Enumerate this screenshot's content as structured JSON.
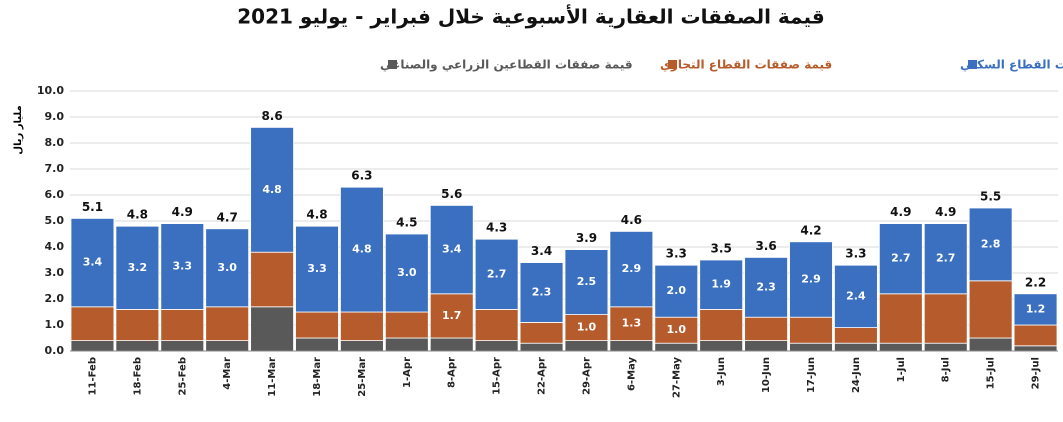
{
  "chart_data": {
    "type": "stacked_bar",
    "title": "قيمة الصفقات العقارية الأسبوعية خلال فبراير - يوليو 2021",
    "y_label": "مليار ريال",
    "categories": [
      "11-Feb",
      "18-Feb",
      "25-Feb",
      "4-Mar",
      "11-Mar",
      "18-Mar",
      "25-Mar",
      "1-Apr",
      "8-Apr",
      "15-Apr",
      "22-Apr",
      "29-Apr",
      "6-May",
      "27-May",
      "3-Jun",
      "10-Jun",
      "17-Jun",
      "24-Jun",
      "1-Jul",
      "8-Jul",
      "15-Jul",
      "29-Jul"
    ],
    "series": [
      {
        "name": "قيمة صفقات القطاعين الزراعي والصناعي",
        "color": "#595959",
        "values": [
          0.4,
          0.4,
          0.4,
          0.4,
          1.7,
          0.5,
          0.4,
          0.5,
          0.5,
          0.4,
          0.3,
          0.4,
          0.4,
          0.3,
          0.4,
          0.4,
          0.3,
          0.3,
          0.3,
          0.3,
          0.5,
          0.2
        ]
      },
      {
        "name": "قيمة صفقات القطاع التجاري",
        "color": "#b65c2c",
        "values": [
          1.3,
          1.2,
          1.2,
          1.3,
          2.1,
          1.0,
          1.1,
          1.0,
          1.7,
          1.2,
          0.8,
          1.0,
          1.3,
          1.0,
          1.2,
          0.9,
          1.0,
          0.6,
          1.9,
          1.9,
          2.2,
          0.8
        ],
        "value_labels": [
          null,
          null,
          null,
          null,
          null,
          null,
          null,
          null,
          "1.7",
          null,
          null,
          "1.0",
          "1.3",
          "1.0",
          null,
          null,
          null,
          null,
          null,
          null,
          null,
          null
        ]
      },
      {
        "name": "قيمة صفقات القطاع السكني",
        "color": "#3a70bf",
        "values": [
          3.4,
          3.2,
          3.3,
          3.0,
          4.8,
          3.3,
          4.8,
          3.0,
          3.4,
          2.7,
          2.3,
          2.5,
          2.9,
          2.0,
          1.9,
          2.3,
          2.9,
          2.4,
          2.7,
          2.7,
          2.8,
          1.2
        ],
        "value_labels": [
          "3.4",
          "3.2",
          "3.3",
          "3.0",
          "4.8",
          "3.3",
          "4.8",
          "3.0",
          "3.4",
          "2.7",
          "2.3",
          "2.5",
          "2.9",
          "2.0",
          "1.9",
          "2.3",
          "2.9",
          "2.4",
          "2.7",
          "2.7",
          "2.8",
          "1.2"
        ]
      }
    ],
    "totals": [
      5.1,
      4.8,
      4.9,
      4.7,
      8.6,
      4.8,
      6.3,
      4.5,
      5.6,
      4.3,
      3.4,
      3.9,
      4.6,
      3.3,
      3.5,
      3.6,
      4.2,
      3.3,
      4.9,
      4.9,
      5.5,
      2.2
    ],
    "ylim": [
      0,
      10
    ],
    "yticks": [
      {
        "value": 0,
        "label": "0.0"
      },
      {
        "value": 1,
        "label": "1.0"
      },
      {
        "value": 2,
        "label": "2.0"
      },
      {
        "value": 3,
        "label": "3.0"
      },
      {
        "value": 4,
        "label": "4.0"
      },
      {
        "value": 5,
        "label": "5.0"
      },
      {
        "value": 6,
        "label": "6.0"
      },
      {
        "value": 7,
        "label": "7.0"
      },
      {
        "value": 8,
        "label": "8.0"
      },
      {
        "value": 9,
        "label": "9.0"
      },
      {
        "value": 10,
        "label": "10.0"
      }
    ],
    "grid": true
  }
}
